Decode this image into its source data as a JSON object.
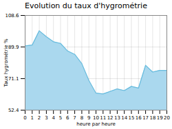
{
  "chart_data": {
    "type": "area",
    "title": "Evolution du taux d'hygrométrie",
    "xlabel": "heure par heure",
    "ylabel": "Taux hygrométrie %",
    "x": [
      0,
      1,
      2,
      3,
      4,
      5,
      6,
      7,
      8,
      9,
      10,
      11,
      12,
      13,
      14,
      15,
      16,
      17,
      18,
      19,
      20
    ],
    "values": [
      90.5,
      91.0,
      99.5,
      96.0,
      93.0,
      92.0,
      87.5,
      85.5,
      80.0,
      70.0,
      62.5,
      62.0,
      63.5,
      65.0,
      64.0,
      66.5,
      65.5,
      79.0,
      75.0,
      76.0,
      76.0
    ],
    "colors": [
      "#aad8ee",
      "#66bbdd"
    ],
    "xlim": [
      0,
      20
    ],
    "xticks": [
      0,
      1,
      2,
      3,
      4,
      5,
      6,
      7,
      8,
      9,
      10,
      11,
      12,
      13,
      14,
      15,
      16,
      17,
      18,
      19,
      20
    ],
    "ylim": [
      52.4,
      108.6
    ],
    "yticks": [
      52.4,
      71.1,
      89.9,
      108.6
    ],
    "grid": true
  }
}
